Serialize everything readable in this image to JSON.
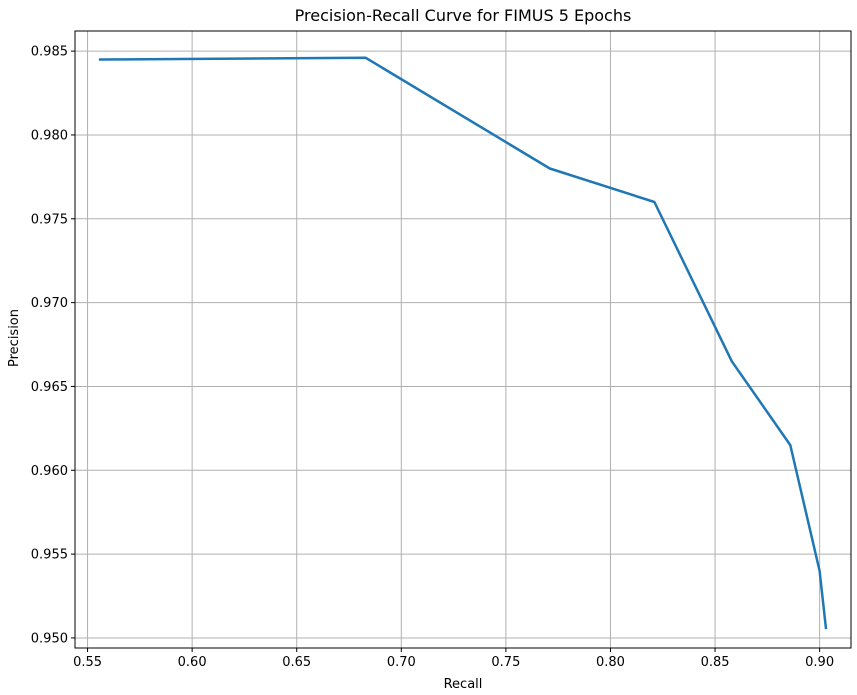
{
  "chart_data": {
    "type": "line",
    "title": "Precision-Recall Curve for FIMUS 5 Epochs",
    "xlabel": "Recall",
    "ylabel": "Precision",
    "xlim": [
      0.544,
      0.915
    ],
    "ylim": [
      0.9494,
      0.9862
    ],
    "grid": true,
    "x_ticks": [
      0.55,
      0.6,
      0.65,
      0.7,
      0.75,
      0.8,
      0.85,
      0.9
    ],
    "x_tick_labels": [
      "0.55",
      "0.60",
      "0.65",
      "0.70",
      "0.75",
      "0.80",
      "0.85",
      "0.90"
    ],
    "y_ticks": [
      0.95,
      0.955,
      0.96,
      0.965,
      0.97,
      0.975,
      0.98,
      0.985
    ],
    "y_tick_labels": [
      "0.950",
      "0.955",
      "0.960",
      "0.965",
      "0.970",
      "0.975",
      "0.980",
      "0.985"
    ],
    "color": "#1f77b4",
    "series": [
      {
        "x": [
          0.556,
          0.683,
          0.771,
          0.821,
          0.858,
          0.886,
          0.9,
          0.903
        ],
        "y": [
          0.9845,
          0.9846,
          0.978,
          0.976,
          0.9665,
          0.9615,
          0.954,
          0.9506
        ]
      }
    ]
  }
}
